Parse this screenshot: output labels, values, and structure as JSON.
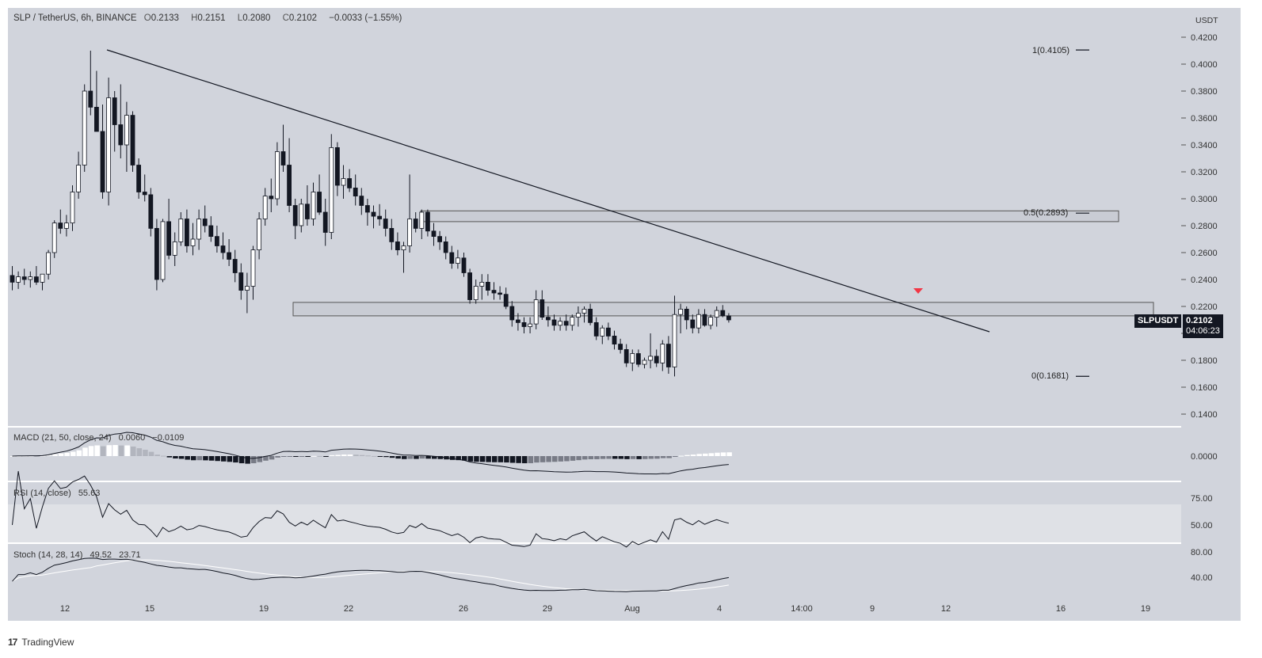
{
  "header": {
    "symbol": "SLP / TetherUS, 6h, BINANCE",
    "o_label": "O",
    "o": "0.2133",
    "h_label": "H",
    "h": "0.2151",
    "l_label": "L",
    "l": "0.2080",
    "c_label": "C",
    "c": "0.2102",
    "change": "−0.0033 (−1.55%)"
  },
  "currency": "USDT",
  "price_tag": {
    "symbol": "SLPUSDT",
    "price": "0.2102",
    "countdown": "04:06:23"
  },
  "fib_levels": [
    {
      "label": "1(0.4105)",
      "value": 0.4105
    },
    {
      "label": "0.5(0.2893)",
      "value": 0.2893
    },
    {
      "label": "0(0.1681)",
      "value": 0.1681
    }
  ],
  "indicators": {
    "macd": {
      "name": "MACD (21, 50, close, 24)",
      "v1": "0.0060",
      "v2": "−0.0109"
    },
    "rsi": {
      "name": "RSI (14, close)",
      "v1": "55.63"
    },
    "stoch": {
      "name": "Stoch (14, 28, 14)",
      "v1": "49.52",
      "v2": "23.71"
    }
  },
  "footer": {
    "brand": "TradingView",
    "logo": "17"
  },
  "colors": {
    "bg": "#d1d4dc",
    "up": "#ffffff",
    "down": "#131722",
    "arrow": "#f23645"
  },
  "chart_data": {
    "type": "candlestick",
    "title": "SLP / TetherUS, 6h, BINANCE",
    "y_range": [
      0.13,
      0.44
    ],
    "y_ticks": [
      "0.4200",
      "0.4000",
      "0.3800",
      "0.3600",
      "0.3400",
      "0.3200",
      "0.3000",
      "0.2800",
      "0.2600",
      "0.2400",
      "0.2200",
      "0.2000",
      "0.1800",
      "0.1600",
      "0.1400"
    ],
    "x_ticks": [
      "12",
      "15",
      "19",
      "22",
      "26",
      "29",
      "Aug",
      "4",
      "14:00",
      "9",
      "12",
      "16",
      "19"
    ],
    "candles_ohlc_approx": [
      [
        0.243,
        0.25,
        0.232,
        0.238
      ],
      [
        0.238,
        0.246,
        0.233,
        0.242
      ],
      [
        0.242,
        0.248,
        0.236,
        0.24
      ],
      [
        0.24,
        0.246,
        0.234,
        0.242
      ],
      [
        0.242,
        0.25,
        0.236,
        0.238
      ],
      [
        0.238,
        0.244,
        0.232,
        0.244
      ],
      [
        0.244,
        0.262,
        0.24,
        0.26
      ],
      [
        0.26,
        0.284,
        0.256,
        0.282
      ],
      [
        0.282,
        0.292,
        0.274,
        0.278
      ],
      [
        0.278,
        0.288,
        0.272,
        0.282
      ],
      [
        0.282,
        0.31,
        0.276,
        0.305
      ],
      [
        0.305,
        0.335,
        0.3,
        0.325
      ],
      [
        0.325,
        0.385,
        0.32,
        0.38
      ],
      [
        0.38,
        0.41,
        0.362,
        0.368
      ],
      [
        0.368,
        0.395,
        0.35,
        0.35
      ],
      [
        0.35,
        0.37,
        0.3,
        0.305
      ],
      [
        0.305,
        0.39,
        0.295,
        0.375
      ],
      [
        0.375,
        0.38,
        0.335,
        0.355
      ],
      [
        0.355,
        0.385,
        0.33,
        0.34
      ],
      [
        0.34,
        0.372,
        0.32,
        0.362
      ],
      [
        0.362,
        0.365,
        0.32,
        0.325
      ],
      [
        0.325,
        0.33,
        0.3,
        0.305
      ],
      [
        0.305,
        0.318,
        0.298,
        0.303
      ],
      [
        0.303,
        0.308,
        0.272,
        0.278
      ],
      [
        0.278,
        0.285,
        0.232,
        0.24
      ],
      [
        0.24,
        0.285,
        0.238,
        0.283
      ],
      [
        0.283,
        0.3,
        0.255,
        0.258
      ],
      [
        0.258,
        0.275,
        0.25,
        0.268
      ],
      [
        0.268,
        0.29,
        0.265,
        0.285
      ],
      [
        0.285,
        0.292,
        0.26,
        0.265
      ],
      [
        0.265,
        0.282,
        0.258,
        0.27
      ],
      [
        0.27,
        0.292,
        0.262,
        0.285
      ],
      [
        0.285,
        0.295,
        0.275,
        0.28
      ],
      [
        0.28,
        0.287,
        0.268,
        0.272
      ],
      [
        0.272,
        0.28,
        0.26,
        0.265
      ],
      [
        0.265,
        0.275,
        0.255,
        0.26
      ],
      [
        0.26,
        0.27,
        0.25,
        0.255
      ],
      [
        0.255,
        0.262,
        0.238,
        0.245
      ],
      [
        0.245,
        0.252,
        0.225,
        0.232
      ],
      [
        0.232,
        0.245,
        0.215,
        0.235
      ],
      [
        0.235,
        0.265,
        0.225,
        0.262
      ],
      [
        0.262,
        0.29,
        0.255,
        0.285
      ],
      [
        0.285,
        0.308,
        0.28,
        0.302
      ],
      [
        0.302,
        0.315,
        0.29,
        0.3
      ],
      [
        0.3,
        0.342,
        0.295,
        0.335
      ],
      [
        0.335,
        0.355,
        0.32,
        0.325
      ],
      [
        0.325,
        0.345,
        0.29,
        0.295
      ],
      [
        0.295,
        0.3,
        0.27,
        0.28
      ],
      [
        0.28,
        0.3,
        0.275,
        0.296
      ],
      [
        0.296,
        0.31,
        0.28,
        0.285
      ],
      [
        0.285,
        0.312,
        0.28,
        0.305
      ],
      [
        0.305,
        0.318,
        0.288,
        0.29
      ],
      [
        0.29,
        0.3,
        0.265,
        0.275
      ],
      [
        0.275,
        0.348,
        0.27,
        0.338
      ],
      [
        0.338,
        0.342,
        0.302,
        0.31
      ],
      [
        0.31,
        0.325,
        0.3,
        0.315
      ],
      [
        0.315,
        0.322,
        0.305,
        0.308
      ],
      [
        0.308,
        0.318,
        0.295,
        0.302
      ],
      [
        0.302,
        0.308,
        0.288,
        0.295
      ],
      [
        0.295,
        0.3,
        0.28,
        0.29
      ],
      [
        0.29,
        0.295,
        0.278,
        0.287
      ],
      [
        0.287,
        0.296,
        0.28,
        0.285
      ],
      [
        0.285,
        0.292,
        0.272,
        0.278
      ],
      [
        0.278,
        0.285,
        0.262,
        0.268
      ],
      [
        0.268,
        0.275,
        0.258,
        0.262
      ],
      [
        0.262,
        0.268,
        0.245,
        0.265
      ],
      [
        0.265,
        0.318,
        0.26,
        0.285
      ],
      [
        0.285,
        0.29,
        0.275,
        0.278
      ],
      [
        0.278,
        0.292,
        0.27,
        0.29
      ],
      [
        0.29,
        0.292,
        0.272,
        0.276
      ],
      [
        0.276,
        0.282,
        0.265,
        0.272
      ],
      [
        0.272,
        0.276,
        0.262,
        0.268
      ],
      [
        0.268,
        0.272,
        0.255,
        0.26
      ],
      [
        0.26,
        0.265,
        0.248,
        0.252
      ],
      [
        0.252,
        0.262,
        0.248,
        0.256
      ],
      [
        0.256,
        0.26,
        0.242,
        0.245
      ],
      [
        0.245,
        0.248,
        0.222,
        0.225
      ],
      [
        0.225,
        0.24,
        0.222,
        0.235
      ],
      [
        0.235,
        0.244,
        0.225,
        0.238
      ],
      [
        0.238,
        0.244,
        0.228,
        0.232
      ],
      [
        0.232,
        0.238,
        0.225,
        0.23
      ],
      [
        0.23,
        0.235,
        0.225,
        0.229
      ],
      [
        0.229,
        0.234,
        0.218,
        0.22
      ],
      [
        0.22,
        0.224,
        0.205,
        0.21
      ],
      [
        0.21,
        0.215,
        0.202,
        0.208
      ],
      [
        0.208,
        0.212,
        0.2,
        0.205
      ],
      [
        0.205,
        0.212,
        0.2,
        0.207
      ],
      [
        0.207,
        0.232,
        0.203,
        0.225
      ],
      [
        0.225,
        0.232,
        0.21,
        0.212
      ],
      [
        0.212,
        0.22,
        0.205,
        0.21
      ],
      [
        0.21,
        0.214,
        0.202,
        0.206
      ],
      [
        0.206,
        0.212,
        0.202,
        0.209
      ],
      [
        0.209,
        0.214,
        0.202,
        0.206
      ],
      [
        0.206,
        0.214,
        0.202,
        0.212
      ],
      [
        0.212,
        0.22,
        0.205,
        0.215
      ],
      [
        0.215,
        0.22,
        0.208,
        0.218
      ],
      [
        0.218,
        0.222,
        0.206,
        0.208
      ],
      [
        0.208,
        0.212,
        0.195,
        0.198
      ],
      [
        0.198,
        0.206,
        0.192,
        0.204
      ],
      [
        0.204,
        0.208,
        0.195,
        0.198
      ],
      [
        0.198,
        0.202,
        0.188,
        0.192
      ],
      [
        0.192,
        0.196,
        0.185,
        0.188
      ],
      [
        0.188,
        0.192,
        0.175,
        0.178
      ],
      [
        0.178,
        0.188,
        0.172,
        0.185
      ],
      [
        0.185,
        0.188,
        0.175,
        0.177
      ],
      [
        0.177,
        0.182,
        0.174,
        0.18
      ],
      [
        0.18,
        0.2,
        0.174,
        0.183
      ],
      [
        0.183,
        0.188,
        0.175,
        0.178
      ],
      [
        0.178,
        0.195,
        0.172,
        0.192
      ],
      [
        0.192,
        0.198,
        0.17,
        0.175
      ],
      [
        0.175,
        0.228,
        0.168,
        0.214
      ],
      [
        0.214,
        0.222,
        0.2,
        0.218
      ],
      [
        0.218,
        0.22,
        0.203,
        0.21
      ],
      [
        0.21,
        0.214,
        0.2,
        0.204
      ],
      [
        0.204,
        0.218,
        0.2,
        0.214
      ],
      [
        0.214,
        0.218,
        0.205,
        0.206
      ],
      [
        0.206,
        0.214,
        0.203,
        0.212
      ],
      [
        0.212,
        0.22,
        0.205,
        0.217
      ],
      [
        0.217,
        0.221,
        0.212,
        0.213
      ],
      [
        0.213,
        0.215,
        0.208,
        0.21
      ]
    ]
  }
}
